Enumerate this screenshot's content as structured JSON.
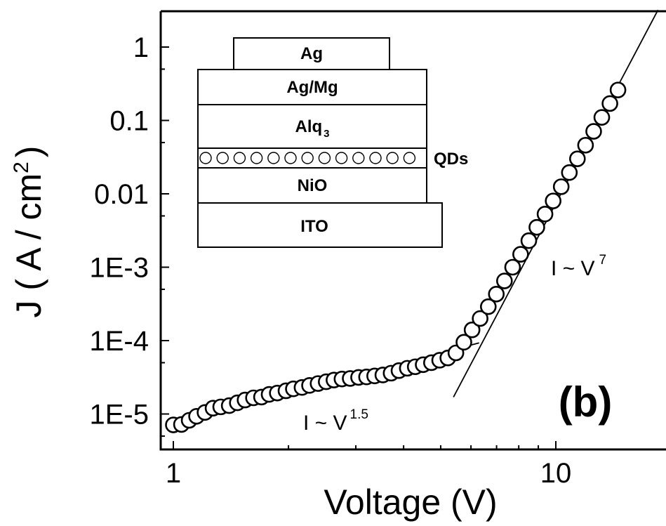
{
  "chart_data": {
    "type": "scatter",
    "xlabel": "Voltage (V)",
    "ylabel": "J ( A / cm",
    "ylabel_sup": "2",
    "ylabel_close": ")",
    "xscale": "log",
    "yscale": "log",
    "xlim": [
      0.95,
      20
    ],
    "ylim": [
      2.3e-06,
      2.6
    ],
    "grid": false,
    "x_ticks": [
      {
        "value": 1,
        "label": "1"
      },
      {
        "value": 10,
        "label": "10"
      }
    ],
    "y_ticks": [
      {
        "value": 1e-05,
        "label": "1E-5"
      },
      {
        "value": 0.0001,
        "label": "1E-4"
      },
      {
        "value": 0.001,
        "label": "1E-3"
      },
      {
        "value": 0.01,
        "label": "0.01"
      },
      {
        "value": 0.1,
        "label": "0.1"
      },
      {
        "value": 1,
        "label": "1"
      }
    ],
    "series": [
      {
        "marker": "open-circle",
        "x": [
          1.0,
          1.05,
          1.1,
          1.15,
          1.21,
          1.27,
          1.33,
          1.4,
          1.47,
          1.54,
          1.62,
          1.7,
          1.78,
          1.87,
          1.97,
          2.06,
          2.17,
          2.27,
          2.39,
          2.51,
          2.63,
          2.76,
          2.9,
          3.05,
          3.2,
          3.36,
          3.53,
          3.71,
          3.89,
          4.09,
          4.29,
          4.5,
          4.73,
          4.97,
          5.22,
          5.48,
          5.75,
          6.04,
          6.34,
          6.66,
          6.99,
          7.34,
          7.71,
          8.09,
          8.5,
          8.92,
          9.37,
          9.84,
          10.33,
          10.85,
          11.39,
          11.96,
          12.56,
          13.19,
          13.85,
          14.54
        ],
        "y": [
          7.1e-06,
          7.2e-06,
          8.2e-06,
          9.3e-06,
          1.05e-05,
          1.2e-05,
          1.25e-05,
          1.3e-05,
          1.42e-05,
          1.55e-05,
          1.66e-05,
          1.7e-05,
          1.85e-05,
          1.93e-05,
          2.07e-05,
          2.2e-05,
          2.3e-05,
          2.45e-05,
          2.6e-05,
          2.75e-05,
          2.9e-05,
          3e-05,
          3.05e-05,
          3.15e-05,
          3.2e-05,
          3.3e-05,
          3.4e-05,
          3.6e-05,
          3.9e-05,
          4.2e-05,
          4.4e-05,
          4.7e-05,
          5e-05,
          5.4e-05,
          5.8e-05,
          6.8e-05,
          9.5e-05,
          0.00014,
          0.0002,
          0.00029,
          0.00043,
          0.00065,
          0.001,
          0.0015,
          0.0023,
          0.0035,
          0.0053,
          0.008,
          0.0125,
          0.0195,
          0.03,
          0.046,
          0.071,
          0.11,
          0.17,
          0.26
        ]
      }
    ],
    "fits": [
      {
        "label_base": "I ~ V",
        "exponent": "1.5",
        "x": [
          1.0,
          6.3
        ],
        "y": [
          7.2e-06,
          9.3e-05
        ]
      },
      {
        "label_base": "I ~ V",
        "exponent": "7",
        "x": [
          5.4,
          18.5
        ],
        "y": [
          1.7e-05,
          3.2
        ]
      }
    ],
    "panel_label": "(b)",
    "inset": {
      "layers": [
        "Ag",
        "Ag/Mg",
        "Alq",
        "QDs",
        "NiO",
        "ITO"
      ],
      "alq_subscript": "3"
    }
  }
}
